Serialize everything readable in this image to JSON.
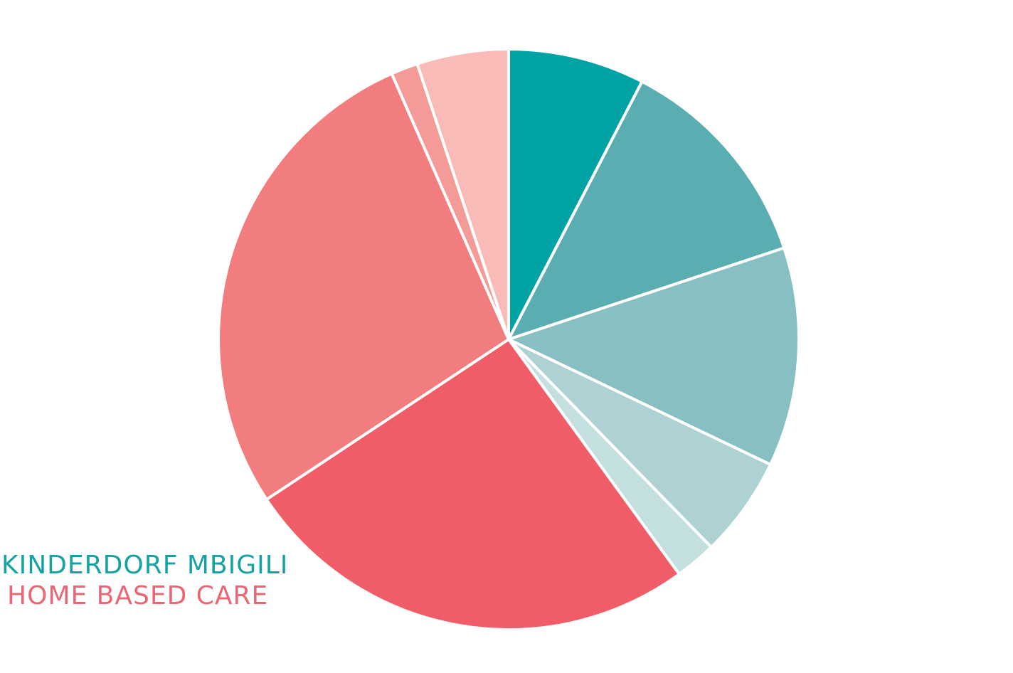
{
  "chart_data": {
    "type": "pie",
    "title": "",
    "start_angle_deg": 0,
    "direction": "clockwise",
    "slices": [
      {
        "group": "Kinderdorf Mbigili",
        "value": 7.6,
        "color": "#00a3a4"
      },
      {
        "group": "Kinderdorf Mbigili",
        "value": 12.3,
        "color": "#5aaeb2"
      },
      {
        "group": "Kinderdorf Mbigili",
        "value": 12.2,
        "color": "#88bfc2"
      },
      {
        "group": "Kinderdorf Mbigili",
        "value": 5.6,
        "color": "#aed2d4"
      },
      {
        "group": "Kinderdorf Mbigili",
        "value": 2.3,
        "color": "#c4dfe0"
      },
      {
        "group": "Home Based Care",
        "value": 25.7,
        "color": "#f05c68"
      },
      {
        "group": "Home Based Care",
        "value": 27.7,
        "color": "#f27d7e"
      },
      {
        "group": "Home Based Care",
        "value": 1.5,
        "color": "#f49a98"
      },
      {
        "group": "Home Based Care",
        "value": 5.1,
        "color": "#f8bbb7"
      }
    ],
    "legend": [
      {
        "label": "KINDERDORF MBIGILI",
        "color": "#16a2a2"
      },
      {
        "label": "HOME BASED CARE",
        "color": "#e96675"
      }
    ],
    "legend_position": "bottom-left",
    "separator_color": "#ffffff"
  }
}
